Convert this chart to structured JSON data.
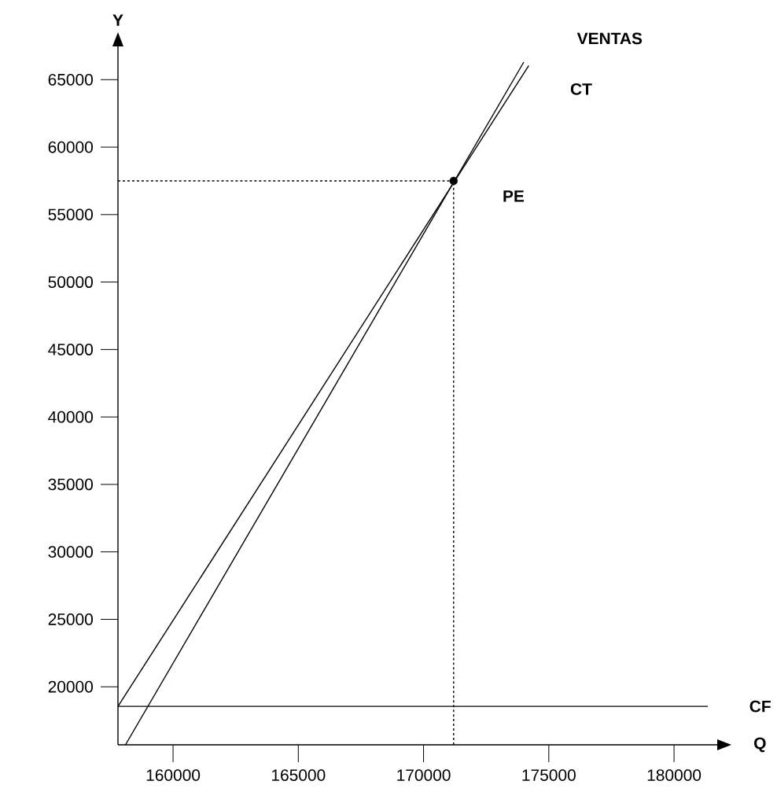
{
  "chart_data": {
    "type": "line",
    "xlabel": "Q",
    "ylabel": "Y",
    "xlim": [
      157800,
      181850
    ],
    "ylim": [
      15700,
      67700
    ],
    "xticks": [
      160000,
      165000,
      170000,
      175000,
      180000
    ],
    "yticks": [
      20000,
      25000,
      30000,
      35000,
      40000,
      45000,
      50000,
      55000,
      60000,
      65000
    ],
    "series": [
      {
        "name": "VENTAS",
        "color": "#000000",
        "x": [
          158100,
          174000
        ],
        "values": [
          15700,
          66300
        ]
      },
      {
        "name": "CT",
        "color": "#000000",
        "x": [
          157800,
          174200
        ],
        "values": [
          18550,
          66050
        ]
      },
      {
        "name": "CF",
        "color": "#000000",
        "x": [
          157800,
          181350
        ],
        "values": [
          18550,
          18550
        ]
      },
      {
        "color": "#000000",
        "line_style": "dashed",
        "x": [
          157800,
          171200
        ],
        "values": [
          57500,
          57500
        ]
      },
      {
        "color": "#000000",
        "line_style": "dashed",
        "x": [
          171200,
          171200
        ],
        "values": [
          15700,
          57500
        ]
      },
      {
        "name": "PE",
        "type": "scatter",
        "color": "#000000",
        "x": [
          171200
        ],
        "values": [
          57500
        ]
      }
    ]
  }
}
